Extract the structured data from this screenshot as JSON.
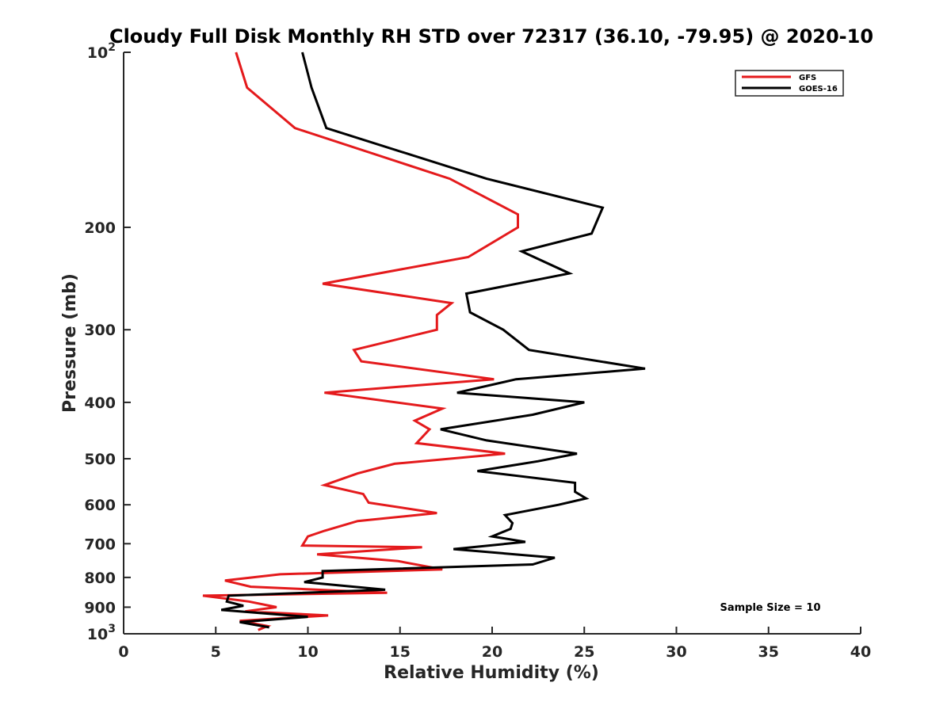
{
  "chart_data": {
    "type": "line",
    "title": "Cloudy Full Disk Monthly RH STD over 72317 (36.10, -79.95) @ 2020-10",
    "xlabel": "Relative Humidity (%)",
    "ylabel": "Pressure (mb)",
    "xlim": [
      0,
      40
    ],
    "ylim": [
      1000,
      100
    ],
    "yscale": "log",
    "y_reversed": true,
    "grid": false,
    "legend_position": "top-right",
    "x_ticks": [
      "0",
      "5",
      "10",
      "15",
      "20",
      "25",
      "30",
      "35",
      "40"
    ],
    "y_ticks": [
      {
        "value": 100,
        "label": "10",
        "sup": "2"
      },
      {
        "value": 200,
        "label": "200",
        "sup": ""
      },
      {
        "value": 300,
        "label": "300",
        "sup": ""
      },
      {
        "value": 400,
        "label": "400",
        "sup": ""
      },
      {
        "value": 500,
        "label": "500",
        "sup": ""
      },
      {
        "value": 600,
        "label": "600",
        "sup": ""
      },
      {
        "value": 700,
        "label": "700",
        "sup": ""
      },
      {
        "value": 800,
        "label": "800",
        "sup": ""
      },
      {
        "value": 900,
        "label": "900",
        "sup": ""
      },
      {
        "value": 1000,
        "label": "10",
        "sup": "3"
      }
    ],
    "annotation": "Sample Size = 10",
    "series": [
      {
        "name": "GFS",
        "color": "#e41a1c",
        "points": [
          [
            6.1,
            100
          ],
          [
            6.7,
            115
          ],
          [
            9.3,
            135
          ],
          [
            17.7,
            165
          ],
          [
            21.4,
            190
          ],
          [
            21.4,
            200
          ],
          [
            18.7,
            225
          ],
          [
            10.8,
            250
          ],
          [
            17.8,
            270
          ],
          [
            17.0,
            283
          ],
          [
            17.0,
            300
          ],
          [
            12.5,
            325
          ],
          [
            12.9,
            340
          ],
          [
            20.1,
            365
          ],
          [
            10.9,
            385
          ],
          [
            17.3,
            410
          ],
          [
            15.8,
            430
          ],
          [
            16.6,
            445
          ],
          [
            15.9,
            470
          ],
          [
            20.7,
            490
          ],
          [
            14.7,
            510
          ],
          [
            12.7,
            530
          ],
          [
            10.9,
            555
          ],
          [
            13.0,
            575
          ],
          [
            13.3,
            595
          ],
          [
            17.0,
            620
          ],
          [
            12.7,
            640
          ],
          [
            10.9,
            665
          ],
          [
            10.0,
            680
          ],
          [
            9.7,
            705
          ],
          [
            16.2,
            710
          ],
          [
            10.5,
            730
          ],
          [
            14.9,
            750
          ],
          [
            17.3,
            775
          ],
          [
            8.5,
            790
          ],
          [
            5.5,
            810
          ],
          [
            6.9,
            830
          ],
          [
            14.3,
            850
          ],
          [
            4.3,
            860
          ],
          [
            6.8,
            880
          ],
          [
            8.3,
            900
          ],
          [
            6.6,
            915
          ],
          [
            11.1,
            930
          ],
          [
            6.3,
            950
          ],
          [
            7.8,
            970
          ],
          [
            7.3,
            985
          ]
        ]
      },
      {
        "name": "GOES-16",
        "color": "#000000",
        "points": [
          [
            9.7,
            100
          ],
          [
            10.2,
            115
          ],
          [
            11.0,
            135
          ],
          [
            19.7,
            165
          ],
          [
            26.0,
            185
          ],
          [
            25.4,
            205
          ],
          [
            21.6,
            220
          ],
          [
            24.2,
            240
          ],
          [
            18.6,
            260
          ],
          [
            18.8,
            280
          ],
          [
            20.6,
            300
          ],
          [
            22.0,
            325
          ],
          [
            28.3,
            350
          ],
          [
            21.3,
            365
          ],
          [
            18.1,
            385
          ],
          [
            25.0,
            400
          ],
          [
            22.2,
            420
          ],
          [
            17.2,
            445
          ],
          [
            19.7,
            465
          ],
          [
            24.6,
            490
          ],
          [
            22.5,
            505
          ],
          [
            19.2,
            525
          ],
          [
            24.5,
            550
          ],
          [
            24.5,
            570
          ],
          [
            25.1,
            585
          ],
          [
            23.6,
            600
          ],
          [
            20.7,
            625
          ],
          [
            21.1,
            645
          ],
          [
            21.0,
            660
          ],
          [
            20.0,
            680
          ],
          [
            21.8,
            695
          ],
          [
            17.9,
            715
          ],
          [
            23.4,
            740
          ],
          [
            22.2,
            760
          ],
          [
            10.8,
            780
          ],
          [
            10.8,
            800
          ],
          [
            9.8,
            815
          ],
          [
            14.2,
            840
          ],
          [
            5.7,
            860
          ],
          [
            5.6,
            880
          ],
          [
            6.5,
            895
          ],
          [
            5.3,
            910
          ],
          [
            10.0,
            935
          ],
          [
            6.3,
            955
          ],
          [
            7.9,
            975
          ]
        ]
      }
    ]
  }
}
